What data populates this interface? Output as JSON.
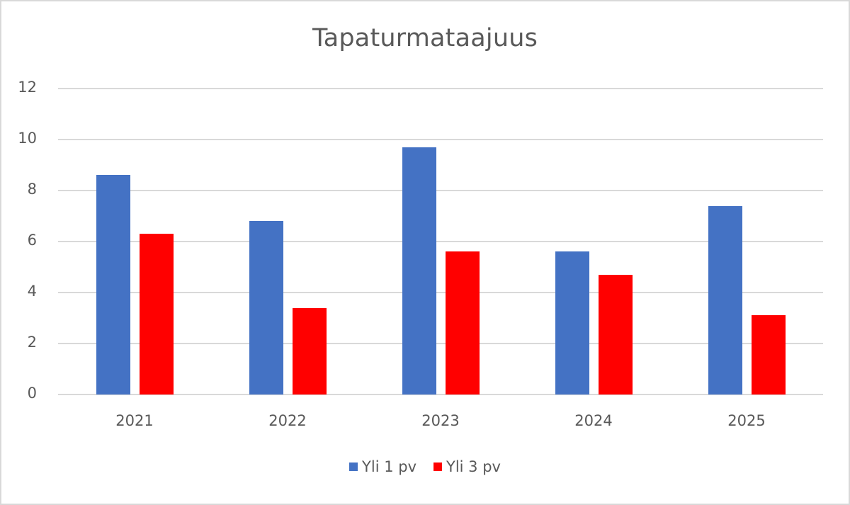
{
  "chart_data": {
    "type": "bar",
    "title": "Tapaturmataajuus",
    "categories": [
      "2021",
      "2022",
      "2023",
      "2024",
      "2025"
    ],
    "series": [
      {
        "name": "Yli 1 pv",
        "color": "#4472C4",
        "values": [
          8.6,
          6.8,
          9.7,
          5.6,
          7.4
        ]
      },
      {
        "name": "Yli 3 pv",
        "color": "#FF0000",
        "values": [
          6.3,
          3.4,
          5.6,
          4.7,
          3.1
        ]
      }
    ],
    "xlabel": "",
    "ylabel": "",
    "ylim": [
      0,
      12
    ],
    "yticks": [
      "0",
      "2",
      "4",
      "6",
      "8",
      "10",
      "12"
    ],
    "grid": true,
    "legend_position": "bottom"
  }
}
